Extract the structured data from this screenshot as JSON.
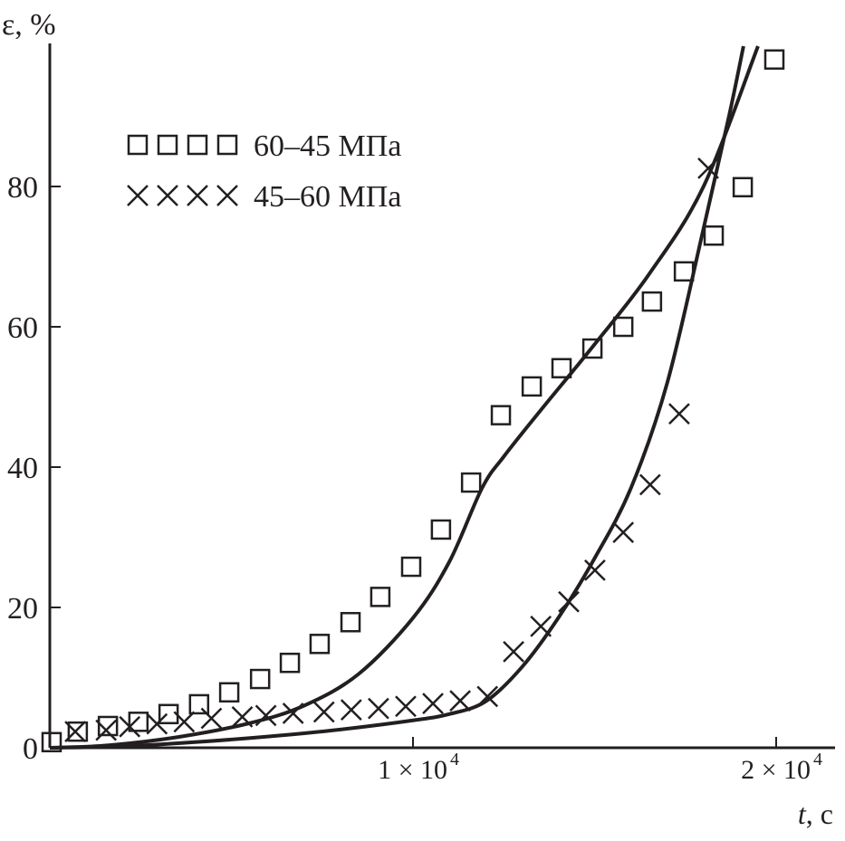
{
  "chart_data": {
    "type": "scatter",
    "title": "",
    "xlabel_var": "t",
    "xlabel_unit": ", с",
    "ylabel": "ε, %",
    "xlim": [
      0,
      21700
    ],
    "ylim": [
      0,
      100
    ],
    "x_ticks": [
      {
        "value": 10000,
        "label_mant": "1 × 10",
        "label_exp": "4"
      },
      {
        "value": 20000,
        "label_mant": "2 × 10",
        "label_exp": "4"
      }
    ],
    "y_ticks": [
      {
        "value": 0,
        "label": "0"
      },
      {
        "value": 20,
        "label": "20"
      },
      {
        "value": 40,
        "label": "40"
      },
      {
        "value": 60,
        "label": "60"
      },
      {
        "value": 80,
        "label": "80"
      }
    ],
    "legend_position": "top-left",
    "series": [
      {
        "name": "60–45 МПа",
        "marker": "square",
        "x": [
          50,
          770,
          1600,
          2440,
          3270,
          4110,
          4940,
          5790,
          6610,
          7430,
          8280,
          9100,
          9950,
          10770,
          11600,
          12420,
          13270,
          14090,
          14940,
          15790,
          16580,
          17460,
          18280,
          19080,
          19950
        ],
        "y": [
          0.8,
          2.3,
          3.1,
          3.7,
          4.8,
          6.2,
          7.9,
          9.8,
          12.1,
          14.8,
          17.9,
          21.5,
          25.8,
          31.1,
          37.8,
          47.4,
          51.5,
          54.1,
          56.9,
          60.0,
          63.6,
          67.9,
          73.0,
          79.9,
          98.1
        ]
      },
      {
        "name": "45–60 МПа",
        "marker": "cross",
        "x": [
          700,
          1550,
          2200,
          2950,
          3700,
          4450,
          5300,
          5950,
          6700,
          7550,
          8300,
          9050,
          9800,
          10550,
          11300,
          12050,
          12770,
          13520,
          14290,
          15010,
          15790,
          16530,
          17330,
          18130
        ],
        "y": [
          2.3,
          2.5,
          3.0,
          3.4,
          3.7,
          4.2,
          4.4,
          4.6,
          4.9,
          5.1,
          5.4,
          5.6,
          5.9,
          6.3,
          6.7,
          7.3,
          13.7,
          17.3,
          20.8,
          25.3,
          30.7,
          37.5,
          47.6,
          82.6
        ]
      }
    ],
    "fit_curves": [
      {
        "name": "fit-60-45",
        "x": [
          0,
          1500,
          3500,
          5500,
          7000,
          8500,
          10000,
          11000,
          11900,
          12500,
          13500,
          15000,
          16500,
          18000,
          19500
        ],
        "y": [
          0,
          0.3,
          1.5,
          3.5,
          6.0,
          10.5,
          18.5,
          26.5,
          37.0,
          41.5,
          48.0,
          57.5,
          67.5,
          80.0,
          100
        ]
      },
      {
        "name": "fit-45-60",
        "x": [
          0,
          2000,
          4000,
          6000,
          8000,
          10000,
          11000,
          12000,
          13000,
          14000,
          15000,
          16000,
          17000,
          18000,
          18700,
          19100
        ],
        "y": [
          0,
          0.2,
          0.8,
          1.6,
          2.6,
          3.9,
          4.8,
          6.6,
          11.5,
          18.5,
          27.0,
          37.0,
          52.0,
          74.0,
          90.0,
          100
        ]
      }
    ]
  }
}
